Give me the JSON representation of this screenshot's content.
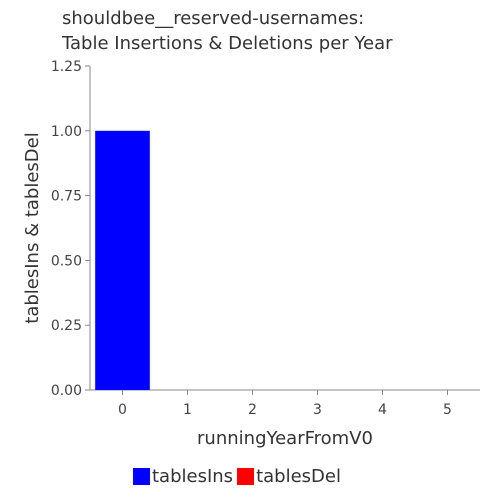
{
  "title_lines": [
    "shouldbee__reserved-usernames:",
    "Table Insertions & Deletions per Year"
  ],
  "chart_data": {
    "type": "bar",
    "title": "shouldbee__reserved-usernames: Table Insertions & Deletions per Year",
    "xlabel": "runningYearFromV0",
    "ylabel": "tablesIns & tablesDel",
    "categories": [
      0,
      1,
      2,
      3,
      4,
      5
    ],
    "x_tick_labels": [
      "0",
      "1",
      "2",
      "3",
      "4",
      "5"
    ],
    "y_tick_labels": [
      "0.00",
      "0.25",
      "0.50",
      "0.75",
      "1.00",
      "1.25"
    ],
    "y_ticks": [
      0,
      0.25,
      0.5,
      0.75,
      1.0,
      1.25
    ],
    "ylim": [
      0,
      1.25
    ],
    "xlim": [
      -0.5,
      5.5
    ],
    "grid": false,
    "legend_position": "bottom",
    "series": [
      {
        "name": "tablesIns",
        "color": "#0000ff",
        "values": [
          1,
          0,
          0,
          0,
          0,
          0
        ]
      },
      {
        "name": "tablesDel",
        "color": "#ff0000",
        "values": [
          0,
          0,
          0,
          0,
          0,
          0
        ]
      }
    ]
  }
}
